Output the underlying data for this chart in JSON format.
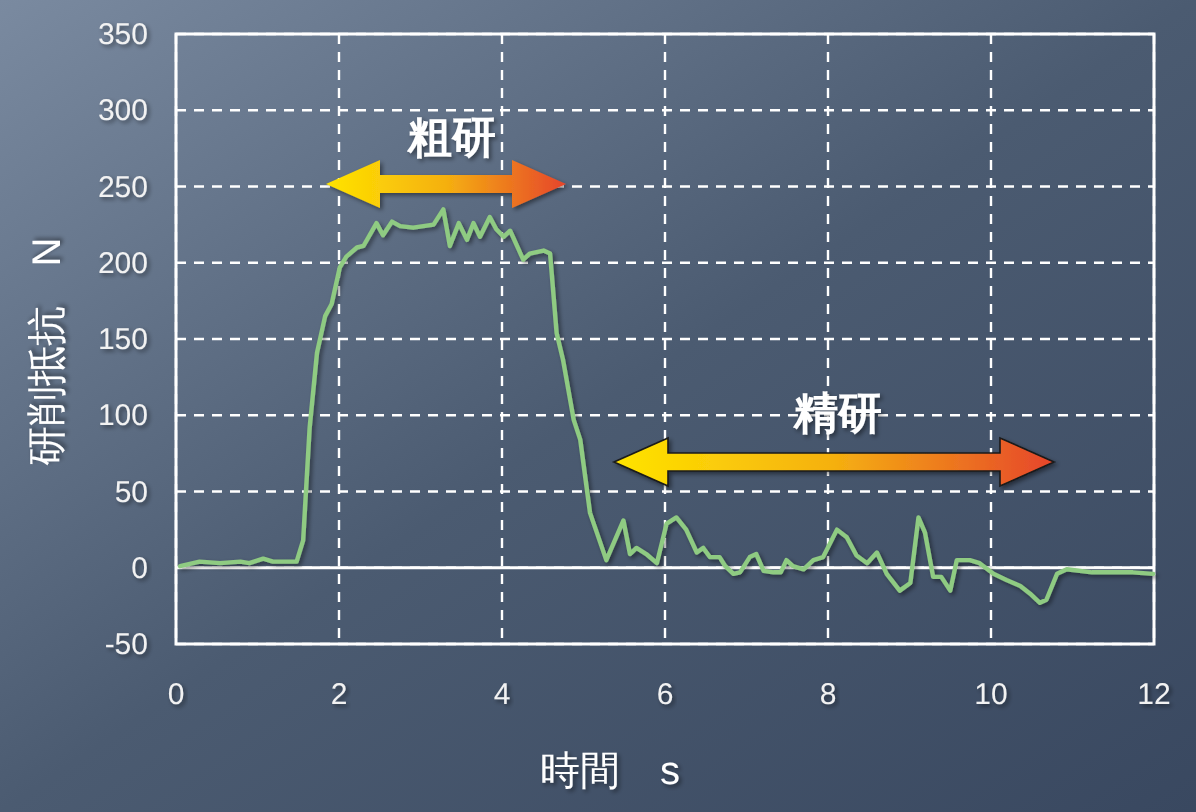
{
  "chart_data": {
    "type": "line",
    "xlabel": "時間　s",
    "ylabel": "研削抵抗　N",
    "x": [
      0.05,
      0.29,
      0.54,
      0.79,
      0.9,
      1.07,
      1.19,
      1.48,
      1.56,
      1.64,
      1.73,
      1.83,
      1.91,
      2.01,
      2.09,
      2.22,
      2.3,
      2.46,
      2.54,
      2.65,
      2.75,
      2.91,
      3.16,
      3.28,
      3.36,
      3.47,
      3.57,
      3.65,
      3.73,
      3.85,
      3.93,
      4.02,
      4.1,
      4.26,
      4.34,
      4.51,
      4.59,
      4.67,
      4.75,
      4.88,
      4.96,
      5.08,
      5.28,
      5.49,
      5.57,
      5.65,
      5.77,
      5.9,
      6.02,
      6.14,
      6.26,
      6.39,
      6.47,
      6.55,
      6.67,
      6.74,
      6.84,
      6.92,
      7.04,
      7.12,
      7.21,
      7.33,
      7.42,
      7.49,
      7.57,
      7.7,
      7.82,
      7.94,
      8.11,
      8.23,
      8.35,
      8.48,
      8.6,
      8.72,
      8.88,
      9.01,
      9.11,
      9.19,
      9.29,
      9.39,
      9.5,
      9.58,
      9.74,
      9.86,
      10.03,
      10.19,
      10.36,
      10.48,
      10.6,
      10.68,
      10.81,
      10.93,
      11.24,
      11.58,
      11.74,
      11.99
    ],
    "values": [
      1,
      4,
      3,
      4,
      3,
      6,
      4,
      4,
      18,
      92,
      141,
      165,
      173,
      197,
      204,
      210,
      211,
      226,
      218,
      227,
      224,
      223,
      225,
      235,
      211,
      226,
      215,
      226,
      217,
      230,
      222,
      217,
      221,
      202,
      206,
      208,
      206,
      154,
      136,
      97,
      84,
      36,
      5,
      31,
      9,
      13,
      9,
      3,
      29,
      33,
      25,
      10,
      13,
      7,
      7,
      1,
      -4,
      -3,
      7,
      9,
      -2,
      -3,
      -3,
      5,
      1,
      -1,
      5,
      7,
      25,
      20,
      8,
      3,
      10,
      -4,
      -15,
      -10,
      33,
      23,
      -6,
      -6,
      -15,
      5,
      5,
      3,
      -4,
      -8,
      -12,
      -17,
      -23,
      -21,
      -4,
      -1,
      -3,
      -3,
      -3,
      -4
    ],
    "color": "#8fcb82",
    "xlim": [
      0,
      12
    ],
    "ylim": [
      -50,
      350
    ],
    "xticks": [
      0,
      2,
      4,
      6,
      8,
      10,
      12
    ],
    "yticks": [
      -50,
      0,
      50,
      100,
      150,
      200,
      250,
      300,
      350
    ],
    "grid": true,
    "ref_lines": [
      {
        "axis": "y",
        "value": 0,
        "color": "#ffffff",
        "line_style": "solid"
      }
    ],
    "annotations": [
      "粗研",
      "精研"
    ]
  }
}
